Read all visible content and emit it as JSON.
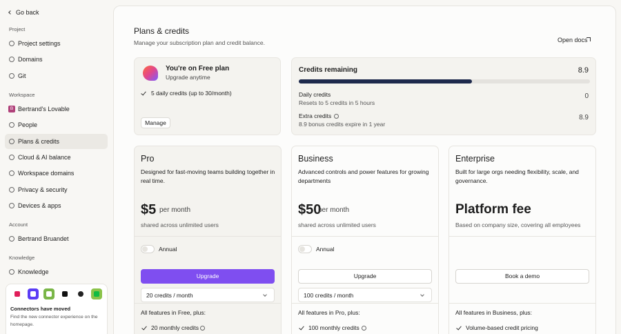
{
  "sidebar": {
    "back": "Go back",
    "sections": [
      {
        "title": "Project",
        "items": [
          "Project settings",
          "Domains",
          "Git"
        ]
      },
      {
        "title": "Workspace",
        "avatar": "B",
        "items": [
          "Bertrand's Lovable",
          "People",
          "Plans & credits",
          "Cloud & AI balance",
          "Workspace domains",
          "Privacy & security",
          "Devices & apps"
        ]
      },
      {
        "title": "Account",
        "items": [
          "Bertrand Bruandet"
        ]
      },
      {
        "title": "Knowledge",
        "items": [
          "Knowledge"
        ]
      }
    ],
    "connectors": {
      "title": "Connectors have moved",
      "text": "Find the new connector experience on the homepage."
    }
  },
  "header": {
    "title": "Plans & credits",
    "subtitle": "Manage your subscription plan and credit balance.",
    "docs_link": "Open docs"
  },
  "current_plan": {
    "title": "You're on Free plan",
    "subtitle": "Upgrade anytime",
    "features": [
      "5 daily credits (up to 30/month)"
    ],
    "button": "Manage"
  },
  "credits": {
    "title": "Credits remaining",
    "total": 8.9,
    "rows": [
      {
        "label": "Daily credits",
        "note": "Resets to 5 credits in 5 hours",
        "value": 0
      },
      {
        "label": "Extra credits",
        "note": "8.9 bonus credits expire in 1 year",
        "value": 8.9
      }
    ]
  },
  "plans": [
    {
      "name": "Pro",
      "description": "Designed for fast-moving teams building together in real time.",
      "price": "$5",
      "period": "per month",
      "note": "shared across unlimited users",
      "toggle": "Annual",
      "button": "Upgrade",
      "select": "20 credits / month",
      "features_title": "All features in Free, plus:",
      "features": [
        "20 monthly credits"
      ]
    },
    {
      "name": "Business",
      "description": "Advanced controls and power features for growing departments",
      "price": "$50",
      "period": "per month",
      "note": "shared across unlimited users",
      "toggle": "Annual",
      "button": "Upgrade",
      "select": "100 credits / month",
      "features_title": "All features in Pro, plus:",
      "features": [
        "100 monthly credits"
      ]
    },
    {
      "name": "Enterprise",
      "description": "Built for large orgs needing flexibility, scale, and governance.",
      "price": "Platform fee",
      "note": "Based on company size, covering all employees",
      "button": "Book a demo",
      "features_title": "All features in Business, plus:",
      "features": [
        "Volume-based credit pricing"
      ]
    }
  ]
}
